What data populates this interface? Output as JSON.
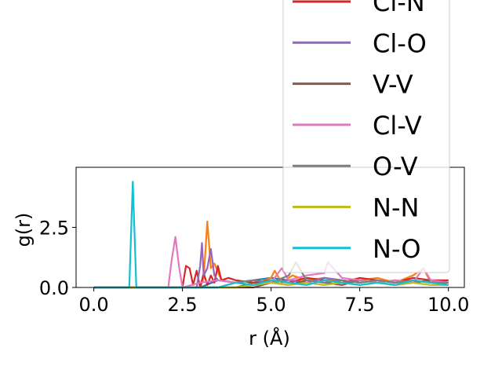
{
  "chart_data": {
    "type": "line",
    "xlabel": "r (Å)",
    "ylabel": "g(r)",
    "xlim": [
      -0.5,
      10.45
    ],
    "ylim": [
      0.0,
      5.0
    ],
    "x_ticks": [
      {
        "value": 0.0,
        "label": "0.0"
      },
      {
        "value": 2.5,
        "label": "2.5"
      },
      {
        "value": 5.0,
        "label": "5.0"
      },
      {
        "value": 7.5,
        "label": "7.5"
      },
      {
        "value": 10.0,
        "label": "10.0"
      }
    ],
    "y_ticks": [
      {
        "value": 0.0,
        "label": "0.0"
      },
      {
        "value": 2.5,
        "label": "2.5"
      }
    ],
    "grid": false,
    "legend_position": "upper-right",
    "legend_cropped_above": true,
    "series": [
      {
        "name": "",
        "color": "#1f77b4",
        "legend": false,
        "x": [
          0,
          3.0,
          3.5,
          4.0,
          4.5,
          5.0,
          5.5,
          6.0,
          6.5,
          7.0,
          7.5,
          8.0,
          8.5,
          9.0,
          9.5,
          10.0
        ],
        "y": [
          0,
          0,
          0.3,
          0.2,
          0.3,
          0.4,
          0.3,
          0.2,
          0.4,
          0.3,
          0.2,
          0.3,
          0.2,
          0.3,
          0.2,
          0.2
        ]
      },
      {
        "name": "",
        "color": "#ff7f0e",
        "legend": false,
        "x": [
          0,
          3.0,
          3.1,
          3.2,
          3.3,
          3.4,
          3.6,
          4.0,
          4.5,
          5.0,
          5.1,
          5.3,
          5.6,
          6.0,
          6.5,
          7.0,
          7.5,
          8.0,
          8.5,
          9.0,
          9.3,
          9.5,
          10.0
        ],
        "y": [
          0,
          0,
          0.4,
          2.75,
          0.8,
          1.0,
          0.3,
          0.2,
          0.1,
          0.4,
          0.7,
          0.2,
          0.5,
          0.3,
          0.4,
          0.2,
          0.3,
          0.4,
          0.2,
          0.5,
          0.8,
          0.2,
          0.3
        ]
      },
      {
        "name": "",
        "color": "#2ca02c",
        "legend": false,
        "x": [
          0,
          4.0,
          4.5,
          5.0,
          5.5,
          6.0,
          6.5,
          7.0,
          7.5,
          8.0,
          8.5,
          9.0,
          9.5,
          10.0
        ],
        "y": [
          0,
          0,
          0.2,
          0.3,
          0.2,
          0.4,
          0.3,
          0.2,
          0.3,
          0.2,
          0.3,
          0.2,
          0.3,
          0.2
        ]
      },
      {
        "name": "Cl-N",
        "color": "#d62728",
        "legend": true,
        "x": [
          0,
          2.5,
          2.6,
          2.7,
          2.8,
          2.9,
          3.0,
          3.1,
          3.2,
          3.3,
          3.4,
          3.5,
          3.6,
          3.8,
          4.0,
          4.5,
          5.0,
          5.5,
          6.0,
          6.5,
          7.0,
          7.5,
          8.0,
          8.5,
          9.0,
          9.5,
          10.0
        ],
        "y": [
          0,
          0,
          0.9,
          0.8,
          0.1,
          0.7,
          0.0,
          0.6,
          0.1,
          0.5,
          0.2,
          0.9,
          0.3,
          0.4,
          0.3,
          0.2,
          0.3,
          0.2,
          0.4,
          0.3,
          0.2,
          0.4,
          0.3,
          0.2,
          0.4,
          0.3,
          0.3
        ]
      },
      {
        "name": "Cl-O",
        "color": "#9467bd",
        "legend": true,
        "x": [
          0,
          2.9,
          3.0,
          3.05,
          3.1,
          3.2,
          3.3,
          3.4,
          3.5,
          4.0,
          4.5,
          5.0,
          5.5,
          6.0,
          6.5,
          7.0,
          7.5,
          8.0,
          8.5,
          9.0,
          9.5,
          10.0
        ],
        "y": [
          0,
          0,
          0.9,
          1.85,
          0.5,
          0.8,
          1.6,
          0.5,
          0.3,
          0.2,
          0.3,
          0.2,
          0.3,
          0.2,
          0.4,
          0.3,
          0.2,
          0.3,
          0.2,
          0.3,
          0.2,
          0.2
        ]
      },
      {
        "name": "V-V",
        "color": "#8c564b",
        "legend": true,
        "x": [
          0,
          4.5,
          5.0,
          5.5,
          6.0,
          6.5,
          7.0,
          7.5,
          8.0,
          8.5,
          9.0,
          9.5,
          10.0
        ],
        "y": [
          0,
          0,
          0.2,
          0.1,
          0.3,
          0.2,
          0.1,
          0.3,
          0.2,
          0.1,
          0.2,
          0.3,
          0.1
        ]
      },
      {
        "name": "Cl-V",
        "color": "#e377c2",
        "legend": true,
        "x": [
          0,
          2.1,
          2.2,
          2.3,
          2.4,
          2.5,
          3.0,
          3.5,
          4.0,
          4.5,
          5.0,
          5.3,
          5.5,
          6.0,
          6.5,
          6.6,
          7.0,
          7.5,
          8.0,
          8.5,
          9.0,
          9.3,
          9.5,
          10.0
        ],
        "y": [
          0,
          0,
          1.2,
          2.1,
          0.9,
          0.0,
          0.2,
          0.3,
          0.2,
          0.1,
          0.2,
          0.8,
          0.3,
          0.5,
          0.6,
          1.05,
          0.4,
          0.3,
          0.2,
          0.3,
          0.2,
          0.8,
          0.3,
          0.2
        ]
      },
      {
        "name": "O-V",
        "color": "#7f7f7f",
        "legend": true,
        "x": [
          0,
          3.5,
          4.0,
          4.5,
          5.0,
          5.5,
          5.7,
          6.0,
          6.5,
          7.0,
          7.5,
          8.0,
          8.5,
          9.0,
          9.5,
          10.0
        ],
        "y": [
          0,
          0,
          0.2,
          0.3,
          0.2,
          0.5,
          1.05,
          0.3,
          0.2,
          0.3,
          0.2,
          0.3,
          0.2,
          0.3,
          0.2,
          0.2
        ]
      },
      {
        "name": "N-N",
        "color": "#bcbd22",
        "legend": true,
        "x": [
          0,
          4.0,
          4.5,
          5.0,
          5.5,
          6.0,
          6.5,
          7.0,
          7.5,
          8.0,
          8.5,
          9.0,
          9.5,
          10.0
        ],
        "y": [
          0,
          0,
          0.1,
          0.2,
          0.1,
          0.2,
          0.1,
          0.2,
          0.1,
          0.2,
          0.1,
          0.2,
          0.1,
          0.1
        ]
      },
      {
        "name": "N-O",
        "color": "#17becf",
        "legend": true,
        "x": [
          0,
          1.0,
          1.1,
          1.2,
          3.5,
          4.0,
          4.5,
          5.0,
          5.5,
          6.0,
          6.5,
          7.0,
          7.5,
          8.0,
          8.5,
          9.0,
          9.5,
          10.0
        ],
        "y": [
          0,
          0,
          4.4,
          0,
          0,
          0.2,
          0.1,
          0.3,
          0.2,
          0.1,
          0.3,
          0.2,
          0.1,
          0.2,
          0.1,
          0.3,
          0.2,
          0.1
        ]
      }
    ]
  }
}
